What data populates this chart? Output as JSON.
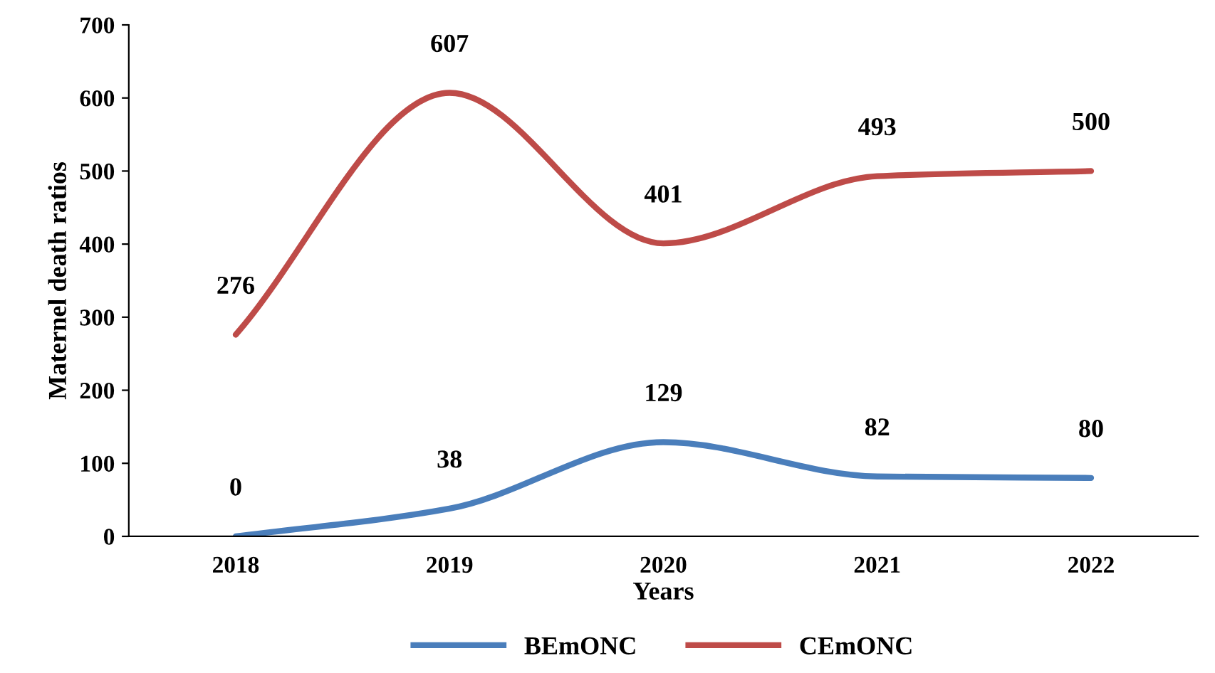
{
  "chart_data": {
    "type": "line",
    "xlabel": "Years",
    "ylabel": "Maternel death ratios",
    "categories": [
      "2018",
      "2019",
      "2020",
      "2021",
      "2022"
    ],
    "series": [
      {
        "name": "BEmONC",
        "color": "#4a7ebb",
        "values": [
          0,
          38,
          129,
          82,
          80
        ]
      },
      {
        "name": "CEmONC",
        "color": "#be4b48",
        "values": [
          276,
          607,
          401,
          493,
          500
        ]
      }
    ],
    "ylim": [
      0,
      700
    ],
    "yticks": [
      0,
      100,
      200,
      300,
      400,
      500,
      600,
      700
    ],
    "data_labels": true,
    "grid": false,
    "legend": "bottom",
    "marker": "none",
    "line_style": "solid"
  }
}
